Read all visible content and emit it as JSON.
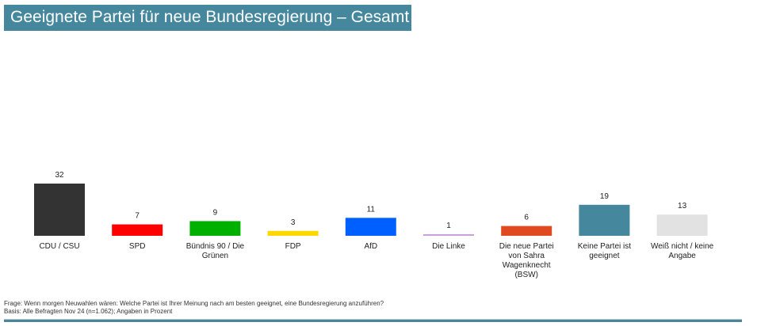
{
  "header": {
    "title": "Geeignete Partei für neue Bundesregierung – Gesamt",
    "accent_color": "#45879c"
  },
  "chart_data": {
    "type": "bar",
    "title": "Geeignete Partei für neue Bundesregierung – Gesamt",
    "xlabel": "",
    "ylabel": "",
    "unit": "Prozent",
    "ylim": [
      0,
      32
    ],
    "grid": false,
    "legend": "none",
    "categories": [
      [
        "CDU / CSU"
      ],
      [
        "SPD"
      ],
      [
        "Bündnis 90 / Die",
        "Grünen"
      ],
      [
        "FDP"
      ],
      [
        "AfD"
      ],
      [
        "Die Linke"
      ],
      [
        "Die neue Partei",
        "von Sahra",
        "Wagenknecht",
        "(BSW)"
      ],
      [
        "Keine Partei ist",
        "geeignet"
      ],
      [
        "Weiß nicht / keine",
        "Angabe"
      ]
    ],
    "values": [
      32,
      7,
      9,
      3,
      11,
      1,
      6,
      19,
      13
    ],
    "colors": [
      "#333333",
      "#ff0000",
      "#00b000",
      "#ffd700",
      "#0060ff",
      "#c8a0dc",
      "#e04a20",
      "#45879c",
      "#e2e2e2"
    ]
  },
  "footer": {
    "question": "Frage: Wenn morgen Neuwahlen wären: Welche Partei ist Ihrer Meinung nach am besten geeignet, eine Bundesregierung anzuführen?",
    "basis": "Basis: Alle Befragten Nov 24 (n=1.062); Angaben in Prozent"
  }
}
